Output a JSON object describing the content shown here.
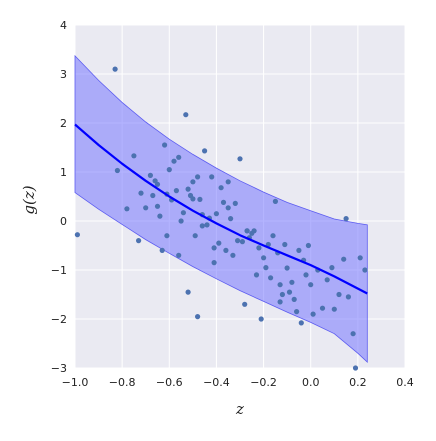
{
  "chart_data": {
    "type": "scatter",
    "xlabel": "z",
    "ylabel": "g(z)",
    "xlim": [
      -1.0,
      0.4
    ],
    "ylim": [
      -3,
      4
    ],
    "xticks": [
      -1.0,
      -0.8,
      -0.6,
      -0.4,
      -0.2,
      0.0,
      0.2,
      0.4
    ],
    "yticks": [
      -3,
      -2,
      -1,
      0,
      1,
      2,
      3,
      4
    ],
    "xtick_labels": [
      "−1.0",
      "−0.8",
      "−0.6",
      "−0.4",
      "−0.2",
      "0.0",
      "0.2",
      "0.4"
    ],
    "ytick_labels": [
      "−3",
      "−2",
      "−1",
      "0",
      "1",
      "2",
      "3",
      "4"
    ],
    "grid": true,
    "colors": {
      "background": "#eaeaf2",
      "grid": "#ffffff",
      "points": "#4c72b0",
      "fit_line": "#0000ff",
      "band_fill": "#7777ff",
      "band_edge": "#5c5cf0"
    },
    "fit_line": {
      "x": [
        -1.0,
        -0.9,
        -0.8,
        -0.7,
        -0.6,
        -0.5,
        -0.4,
        -0.3,
        -0.2,
        -0.1,
        0.0,
        0.1,
        0.2,
        0.24
      ],
      "y": [
        1.97,
        1.55,
        1.17,
        0.82,
        0.5,
        0.21,
        -0.05,
        -0.29,
        -0.5,
        -0.7,
        -0.9,
        -1.13,
        -1.38,
        -1.48
      ]
    },
    "band": {
      "x": [
        -1.0,
        -0.9,
        -0.8,
        -0.7,
        -0.6,
        -0.5,
        -0.4,
        -0.3,
        -0.2,
        -0.1,
        0.0,
        0.1,
        0.2,
        0.24
      ],
      "upper": [
        3.37,
        2.87,
        2.42,
        2.02,
        1.67,
        1.36,
        1.08,
        0.82,
        0.59,
        0.38,
        0.21,
        0.04,
        -0.05,
        -0.08
      ],
      "lower": [
        0.58,
        0.24,
        -0.07,
        -0.38,
        -0.66,
        -0.93,
        -1.18,
        -1.42,
        -1.64,
        -1.86,
        -2.07,
        -2.3,
        -2.7,
        -2.88
      ]
    },
    "points": {
      "x": [
        -0.99,
        -0.83,
        -0.82,
        -0.78,
        -0.75,
        -0.73,
        -0.72,
        -0.7,
        -0.68,
        -0.67,
        -0.66,
        -0.65,
        -0.65,
        -0.64,
        -0.63,
        -0.62,
        -0.61,
        -0.6,
        -0.59,
        -0.58,
        -0.57,
        -0.56,
        -0.55,
        -0.54,
        -0.53,
        -0.52,
        -0.51,
        -0.5,
        -0.5,
        -0.49,
        -0.48,
        -0.47,
        -0.46,
        -0.45,
        -0.44,
        -0.43,
        -0.42,
        -0.41,
        -0.41,
        -0.4,
        -0.39,
        -0.38,
        -0.37,
        -0.36,
        -0.35,
        -0.34,
        -0.33,
        -0.32,
        -0.31,
        -0.3,
        -0.29,
        -0.28,
        -0.27,
        -0.26,
        -0.25,
        -0.24,
        -0.23,
        -0.22,
        -0.21,
        -0.2,
        -0.19,
        -0.18,
        -0.17,
        -0.16,
        -0.15,
        -0.14,
        -0.13,
        -0.12,
        -0.11,
        -0.1,
        -0.09,
        -0.08,
        -0.07,
        -0.06,
        -0.05,
        -0.04,
        -0.03,
        -0.02,
        -0.01,
        0.0,
        0.01,
        0.03,
        0.05,
        0.07,
        0.09,
        0.1,
        0.12,
        0.14,
        0.16,
        0.18,
        0.19,
        0.21,
        0.23,
        -0.48,
        -0.52,
        -0.46,
        -0.35,
        -0.56,
        -0.61,
        -0.27,
        -0.13,
        0.15
      ],
      "y": [
        -0.28,
        3.1,
        1.03,
        0.25,
        1.33,
        -0.4,
        0.57,
        0.27,
        0.93,
        0.52,
        0.82,
        0.3,
        0.75,
        0.1,
        -0.6,
        1.55,
        0.55,
        1.05,
        0.43,
        1.22,
        0.62,
        1.3,
        0.0,
        0.17,
        2.17,
        0.65,
        0.52,
        0.8,
        0.45,
        -0.3,
        0.9,
        0.44,
        0.13,
        1.43,
        -0.08,
        0.06,
        0.9,
        -0.85,
        -0.55,
        0.15,
        -0.45,
        0.68,
        0.38,
        -0.6,
        0.27,
        0.05,
        -0.7,
        0.36,
        -0.4,
        1.27,
        -0.42,
        -1.7,
        -0.2,
        -0.34,
        -0.25,
        -0.2,
        -1.1,
        -0.55,
        -2.0,
        -0.75,
        -0.95,
        -0.48,
        -1.16,
        -0.3,
        0.4,
        -0.65,
        -1.3,
        -1.5,
        -0.48,
        -0.96,
        -1.45,
        -1.25,
        -1.6,
        -1.85,
        -0.6,
        -2.08,
        -0.8,
        -1.1,
        -0.5,
        -1.3,
        -1.9,
        -1.0,
        -1.78,
        -1.2,
        -0.95,
        -1.8,
        -1.5,
        -0.78,
        -1.55,
        -2.3,
        -3.0,
        -0.75,
        -1.0,
        -1.95,
        -1.45,
        -0.1,
        0.8,
        -0.7,
        -0.3,
        -0.2,
        -1.65,
        0.05
      ]
    }
  }
}
